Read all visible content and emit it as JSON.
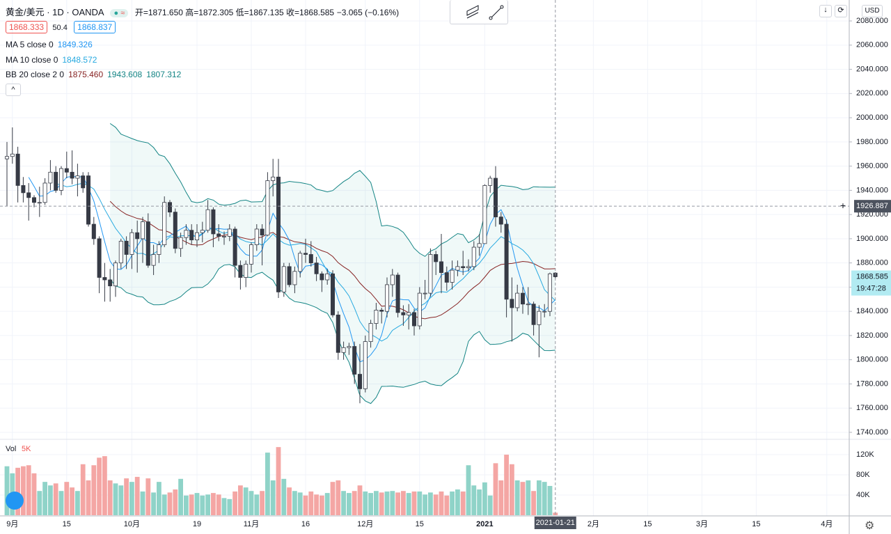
{
  "header": {
    "symbol": "黄金/美元 · 1D · OANDA",
    "ohlc": "开=1871.650 高=1872.305 低=1867.135 收=1868.585",
    "change": "−3.065 (−0.16%)",
    "bid": "1868.333",
    "spread": "50.4",
    "ask": "1868.837"
  },
  "indicators": [
    {
      "label": "MA 5 close 0",
      "values": [
        "1849.326"
      ],
      "colors": [
        "#2196f3"
      ]
    },
    {
      "label": "MA 10 close 0",
      "values": [
        "1848.572"
      ],
      "colors": [
        "#26a9e0"
      ]
    },
    {
      "label": "BB 20 close 2 0",
      "values": [
        "1875.460",
        "1943.608",
        "1807.312"
      ],
      "colors": [
        "#872323",
        "#138484",
        "#138484"
      ]
    }
  ],
  "chart_data": {
    "type": "candlestick",
    "x": [
      "2020-08-31",
      "2020-09-01",
      "2020-09-02",
      "2020-09-03",
      "2020-09-04",
      "2020-09-07",
      "2020-09-08",
      "2020-09-09",
      "2020-09-10",
      "2020-09-11",
      "2020-09-14",
      "2020-09-15",
      "2020-09-16",
      "2020-09-17",
      "2020-09-18",
      "2020-09-21",
      "2020-09-22",
      "2020-09-23",
      "2020-09-24",
      "2020-09-25",
      "2020-09-28",
      "2020-09-29",
      "2020-09-30",
      "2020-10-01",
      "2020-10-02",
      "2020-10-05",
      "2020-10-06",
      "2020-10-07",
      "2020-10-08",
      "2020-10-09",
      "2020-10-12",
      "2020-10-13",
      "2020-10-14",
      "2020-10-15",
      "2020-10-16",
      "2020-10-19",
      "2020-10-20",
      "2020-10-21",
      "2020-10-22",
      "2020-10-23",
      "2020-10-26",
      "2020-10-27",
      "2020-10-28",
      "2020-10-29",
      "2020-10-30",
      "2020-11-02",
      "2020-11-03",
      "2020-11-04",
      "2020-11-05",
      "2020-11-06",
      "2020-11-09",
      "2020-11-10",
      "2020-11-11",
      "2020-11-12",
      "2020-11-13",
      "2020-11-16",
      "2020-11-17",
      "2020-11-18",
      "2020-11-19",
      "2020-11-20",
      "2020-11-23",
      "2020-11-24",
      "2020-11-25",
      "2020-11-26",
      "2020-11-27",
      "2020-11-30",
      "2020-12-01",
      "2020-12-02",
      "2020-12-03",
      "2020-12-04",
      "2020-12-07",
      "2020-12-08",
      "2020-12-09",
      "2020-12-10",
      "2020-12-11",
      "2020-12-14",
      "2020-12-15",
      "2020-12-16",
      "2020-12-17",
      "2020-12-18",
      "2020-12-21",
      "2020-12-22",
      "2020-12-23",
      "2020-12-24",
      "2020-12-28",
      "2020-12-29",
      "2020-12-30",
      "2020-12-31",
      "2021-01-04",
      "2021-01-05",
      "2021-01-06",
      "2021-01-07",
      "2021-01-08",
      "2021-01-11",
      "2021-01-12",
      "2021-01-13",
      "2021-01-14",
      "2021-01-15",
      "2021-01-18",
      "2021-01-19",
      "2021-01-20",
      "2021-01-21"
    ],
    "open": [
      1966,
      1968,
      1970,
      1944,
      1938,
      1934,
      1930,
      1930,
      1946,
      1955,
      1940,
      1958,
      1955,
      1950,
      1952,
      1952,
      1912,
      1900,
      1868,
      1866,
      1861,
      1880,
      1898,
      1887,
      1905,
      1900,
      1914,
      1878,
      1887,
      1895,
      1930,
      1922,
      1892,
      1901,
      1907,
      1899,
      1905,
      1907,
      1924,
      1904,
      1902,
      1902,
      1908,
      1878,
      1868,
      1879,
      1895,
      1908,
      1903,
      1948,
      1951,
      1856,
      1877,
      1862,
      1873,
      1888,
      1887,
      1880,
      1871,
      1866,
      1871,
      1837,
      1806,
      1810,
      1811,
      1788,
      1776,
      1815,
      1830,
      1841,
      1840,
      1862,
      1870,
      1839,
      1837,
      1839,
      1828,
      1855,
      1855,
      1887,
      1881,
      1872,
      1864,
      1874,
      1877,
      1876,
      1877,
      1893,
      1896,
      1944,
      1950,
      1918,
      1912,
      1850,
      1843,
      1855,
      1846,
      1846,
      1829,
      1840,
      1840,
      1871.65
    ],
    "high": [
      1980,
      1992,
      1976,
      1951,
      1946,
      1936,
      1943,
      1950,
      1965,
      1960,
      1960,
      1972,
      1973,
      1962,
      1955,
      1955,
      1918,
      1902,
      1880,
      1875,
      1882,
      1900,
      1902,
      1908,
      1915,
      1918,
      1921,
      1895,
      1898,
      1935,
      1932,
      1925,
      1905,
      1912,
      1912,
      1912,
      1914,
      1932,
      1926,
      1912,
      1906,
      1912,
      1910,
      1882,
      1882,
      1897,
      1912,
      1912,
      1955,
      1966,
      1966,
      1880,
      1880,
      1877,
      1890,
      1900,
      1898,
      1885,
      1873,
      1875,
      1874,
      1840,
      1815,
      1814,
      1815,
      1813,
      1820,
      1833,
      1847,
      1843,
      1868,
      1875,
      1872,
      1845,
      1846,
      1842,
      1860,
      1866,
      1892,
      1890,
      1904,
      1877,
      1882,
      1882,
      1890,
      1883,
      1898,
      1904,
      1945,
      1952,
      1960,
      1922,
      1916,
      1868,
      1862,
      1860,
      1860,
      1848,
      1845,
      1846,
      1872,
      1872.305
    ],
    "low": [
      1927,
      1962,
      1930,
      1930,
      1915,
      1926,
      1918,
      1928,
      1940,
      1938,
      1936,
      1950,
      1945,
      1935,
      1938,
      1910,
      1895,
      1855,
      1848,
      1848,
      1852,
      1875,
      1875,
      1875,
      1872,
      1880,
      1876,
      1870,
      1880,
      1893,
      1918,
      1888,
      1885,
      1895,
      1895,
      1893,
      1897,
      1905,
      1893,
      1898,
      1895,
      1898,
      1868,
      1858,
      1860,
      1872,
      1890,
      1878,
      1902,
      1935,
      1851,
      1852,
      1860,
      1855,
      1868,
      1880,
      1877,
      1865,
      1856,
      1862,
      1835,
      1800,
      1800,
      1804,
      1780,
      1764,
      1773,
      1810,
      1825,
      1830,
      1835,
      1852,
      1835,
      1828,
      1825,
      1820,
      1825,
      1850,
      1852,
      1870,
      1855,
      1857,
      1858,
      1869,
      1870,
      1873,
      1874,
      1886,
      1896,
      1938,
      1910,
      1905,
      1835,
      1815,
      1840,
      1838,
      1837,
      1820,
      1802,
      1835,
      1836,
      1867.135
    ],
    "close": [
      1968,
      1970,
      1944,
      1938,
      1934,
      1930,
      1930,
      1946,
      1955,
      1940,
      1958,
      1955,
      1950,
      1952,
      1942,
      1912,
      1900,
      1868,
      1866,
      1861,
      1880,
      1898,
      1887,
      1905,
      1900,
      1914,
      1878,
      1887,
      1895,
      1930,
      1922,
      1892,
      1901,
      1907,
      1899,
      1905,
      1907,
      1924,
      1904,
      1902,
      1902,
      1908,
      1878,
      1868,
      1879,
      1895,
      1908,
      1903,
      1948,
      1951,
      1856,
      1877,
      1862,
      1873,
      1888,
      1887,
      1880,
      1871,
      1866,
      1871,
      1837,
      1806,
      1810,
      1811,
      1788,
      1776,
      1815,
      1830,
      1841,
      1840,
      1862,
      1870,
      1839,
      1837,
      1839,
      1828,
      1855,
      1855,
      1887,
      1881,
      1872,
      1864,
      1874,
      1877,
      1876,
      1877,
      1893,
      1896,
      1944,
      1950,
      1918,
      1912,
      1850,
      1843,
      1855,
      1846,
      1846,
      1829,
      1840,
      1840,
      1871,
      1868.585
    ],
    "up_color": "#ffffff",
    "down_color": "#363a45",
    "wick_color": "#363a45",
    "ylim": [
      1734.8,
      2097.3
    ],
    "yticks": [
      {
        "value": 1740,
        "label": "1740.000"
      },
      {
        "value": 1760,
        "label": "1760.000"
      },
      {
        "value": 1780,
        "label": "1780.000"
      },
      {
        "value": 1800,
        "label": "1800.000"
      },
      {
        "value": 1820,
        "label": "1820.000"
      },
      {
        "value": 1840,
        "label": "1840.000"
      },
      {
        "value": 1860,
        "label": "1860.000"
      },
      {
        "value": 1880,
        "label": "1880.000"
      },
      {
        "value": 1900,
        "label": "1900.000"
      },
      {
        "value": 1920,
        "label": "1920.000"
      },
      {
        "value": 1940,
        "label": "1940.000"
      },
      {
        "value": 1960,
        "label": "1960.000"
      },
      {
        "value": 1980,
        "label": "1980.000"
      },
      {
        "value": 2000,
        "label": "2000.000"
      },
      {
        "value": 2020,
        "label": "2020.000"
      },
      {
        "value": 2040,
        "label": "2040.000"
      },
      {
        "value": 2060,
        "label": "2060.000"
      },
      {
        "value": 2080,
        "label": "2080.000"
      }
    ],
    "xticks": [
      {
        "value": "2020-09-01",
        "label": "9月"
      },
      {
        "value": "2020-09-15",
        "label": "15"
      },
      {
        "value": "2020-10-01",
        "label": "10月"
      },
      {
        "value": "2020-10-19",
        "label": "19"
      },
      {
        "value": "2020-11-02",
        "label": "11月"
      },
      {
        "value": "2020-11-16",
        "label": "16"
      },
      {
        "value": "2020-12-01",
        "label": "12月"
      },
      {
        "value": "2020-12-15",
        "label": "15"
      },
      {
        "value": "2021-01-04",
        "label": "2021",
        "bold": true
      },
      {
        "value": "2021-02-01",
        "label": "2月"
      },
      {
        "value": "2021-02-15",
        "label": "15"
      },
      {
        "value": "2021-03-01",
        "label": "3月"
      },
      {
        "value": "2021-03-15",
        "label": "15"
      },
      {
        "value": "2021-04-01",
        "label": "4月"
      }
    ],
    "grid": true,
    "moving_averages": [
      {
        "period": 5,
        "color": "#2196f3"
      },
      {
        "period": 10,
        "color": "#26a9e0"
      }
    ],
    "bollinger": {
      "period": 20,
      "mult": 2,
      "middle_color": "#872323",
      "band_color": "#138484",
      "fill": "rgba(38,166,154,0.07)"
    },
    "crosshair": {
      "price": {
        "value": 1926.887,
        "label": "1926.887"
      },
      "date": "2021-01-21"
    },
    "last_price_label": "1868.585",
    "countdown": "19:47:28",
    "currency": "USD",
    "volume": {
      "name": "Vol",
      "last_label": "5K",
      "up_color": "#8fd3c8",
      "down_color": "#f4a6a4",
      "ylim": [
        0,
        149000
      ],
      "yticks": [
        {
          "value": 40000,
          "label": "40K"
        },
        {
          "value": 80000,
          "label": "80K"
        },
        {
          "value": 120000,
          "label": "120K"
        }
      ],
      "values": [
        97000,
        83000,
        94000,
        97000,
        99000,
        83000,
        48000,
        66000,
        59000,
        63000,
        48000,
        66000,
        55000,
        48000,
        101000,
        69000,
        99000,
        114000,
        117000,
        69000,
        63000,
        59000,
        73000,
        66000,
        76000,
        47000,
        73000,
        45000,
        66000,
        41000,
        45000,
        51000,
        72000,
        39000,
        41000,
        44000,
        39000,
        41000,
        44000,
        41000,
        34000,
        32000,
        47000,
        59000,
        55000,
        48000,
        41000,
        48000,
        124000,
        69000,
        135000,
        72000,
        55000,
        48000,
        45000,
        39000,
        47000,
        41000,
        39000,
        44000,
        66000,
        69000,
        48000,
        44000,
        48000,
        59000,
        47000,
        44000,
        48000,
        45000,
        47000,
        48000,
        45000,
        48000,
        44000,
        47000,
        47000,
        41000,
        45000,
        41000,
        47000,
        39000,
        47000,
        51000,
        47000,
        99000,
        59000,
        51000,
        65000,
        39000,
        103000,
        69000,
        120000,
        101000,
        69000,
        66000,
        69000,
        48000,
        69000,
        66000,
        58000,
        5000
      ]
    }
  }
}
